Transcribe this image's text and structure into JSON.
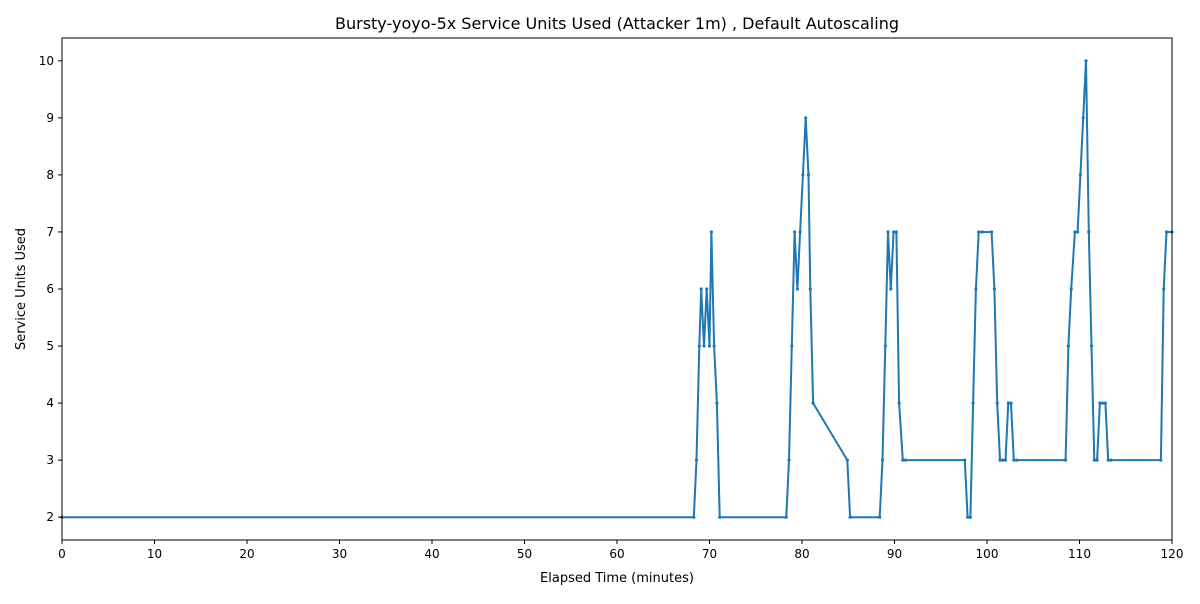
{
  "colors": {
    "series": "#1f77b4",
    "axes": "#000000",
    "background": "#ffffff"
  },
  "chart_data": {
    "type": "line",
    "title": "Bursty-yoyo-5x Service Units Used (Attacker 1m) , Default Autoscaling",
    "xlabel": "Elapsed Time (minutes)",
    "ylabel": "Service Units Used",
    "xlim": [
      0,
      120
    ],
    "ylim": [
      1.6,
      10.4
    ],
    "xticks": [
      0,
      10,
      20,
      30,
      40,
      50,
      60,
      70,
      80,
      90,
      100,
      110,
      120
    ],
    "yticks": [
      2,
      3,
      4,
      5,
      6,
      7,
      8,
      9,
      10
    ],
    "grid": false,
    "markers": true,
    "series": [
      {
        "x": [
          0,
          68.3,
          68.6,
          68.9,
          69.1,
          69.4,
          69.7,
          70.0,
          70.2,
          70.5,
          70.8,
          71.1,
          78.3,
          78.6,
          78.9,
          79.2,
          79.5,
          79.8,
          80.1,
          80.4,
          80.7,
          80.9,
          81.2,
          84.9,
          85.2,
          88.4,
          88.7,
          89.0,
          89.3,
          89.6,
          89.9,
          90.2,
          90.5,
          90.9,
          91.2,
          97.6,
          97.9,
          98.2,
          98.5,
          98.8,
          99.1,
          99.5,
          100.5,
          100.8,
          101.1,
          101.4,
          101.7,
          102.0,
          102.3,
          102.6,
          102.9,
          103.2,
          108.5,
          108.8,
          109.1,
          109.5,
          109.8,
          110.1,
          110.4,
          110.7,
          111.0,
          111.3,
          111.6,
          111.9,
          112.2,
          112.5,
          112.8,
          113.1,
          113.4,
          118.8,
          119.1,
          119.4,
          120.0
        ],
        "y": [
          2,
          2,
          3,
          5,
          6,
          5,
          6,
          5,
          7,
          5,
          4,
          2,
          2,
          3,
          5,
          7,
          6,
          7,
          8,
          9,
          8,
          6,
          4,
          3,
          2,
          2,
          3,
          5,
          7,
          6,
          7,
          7,
          4,
          3,
          3,
          3,
          2,
          2,
          4,
          6,
          7,
          7,
          7,
          6,
          4,
          3,
          3,
          3,
          4,
          4,
          3,
          3,
          3,
          5,
          6,
          7,
          7,
          8,
          9,
          10,
          7,
          5,
          3,
          3,
          4,
          4,
          4,
          3,
          3,
          3,
          6,
          7,
          7
        ]
      }
    ]
  }
}
